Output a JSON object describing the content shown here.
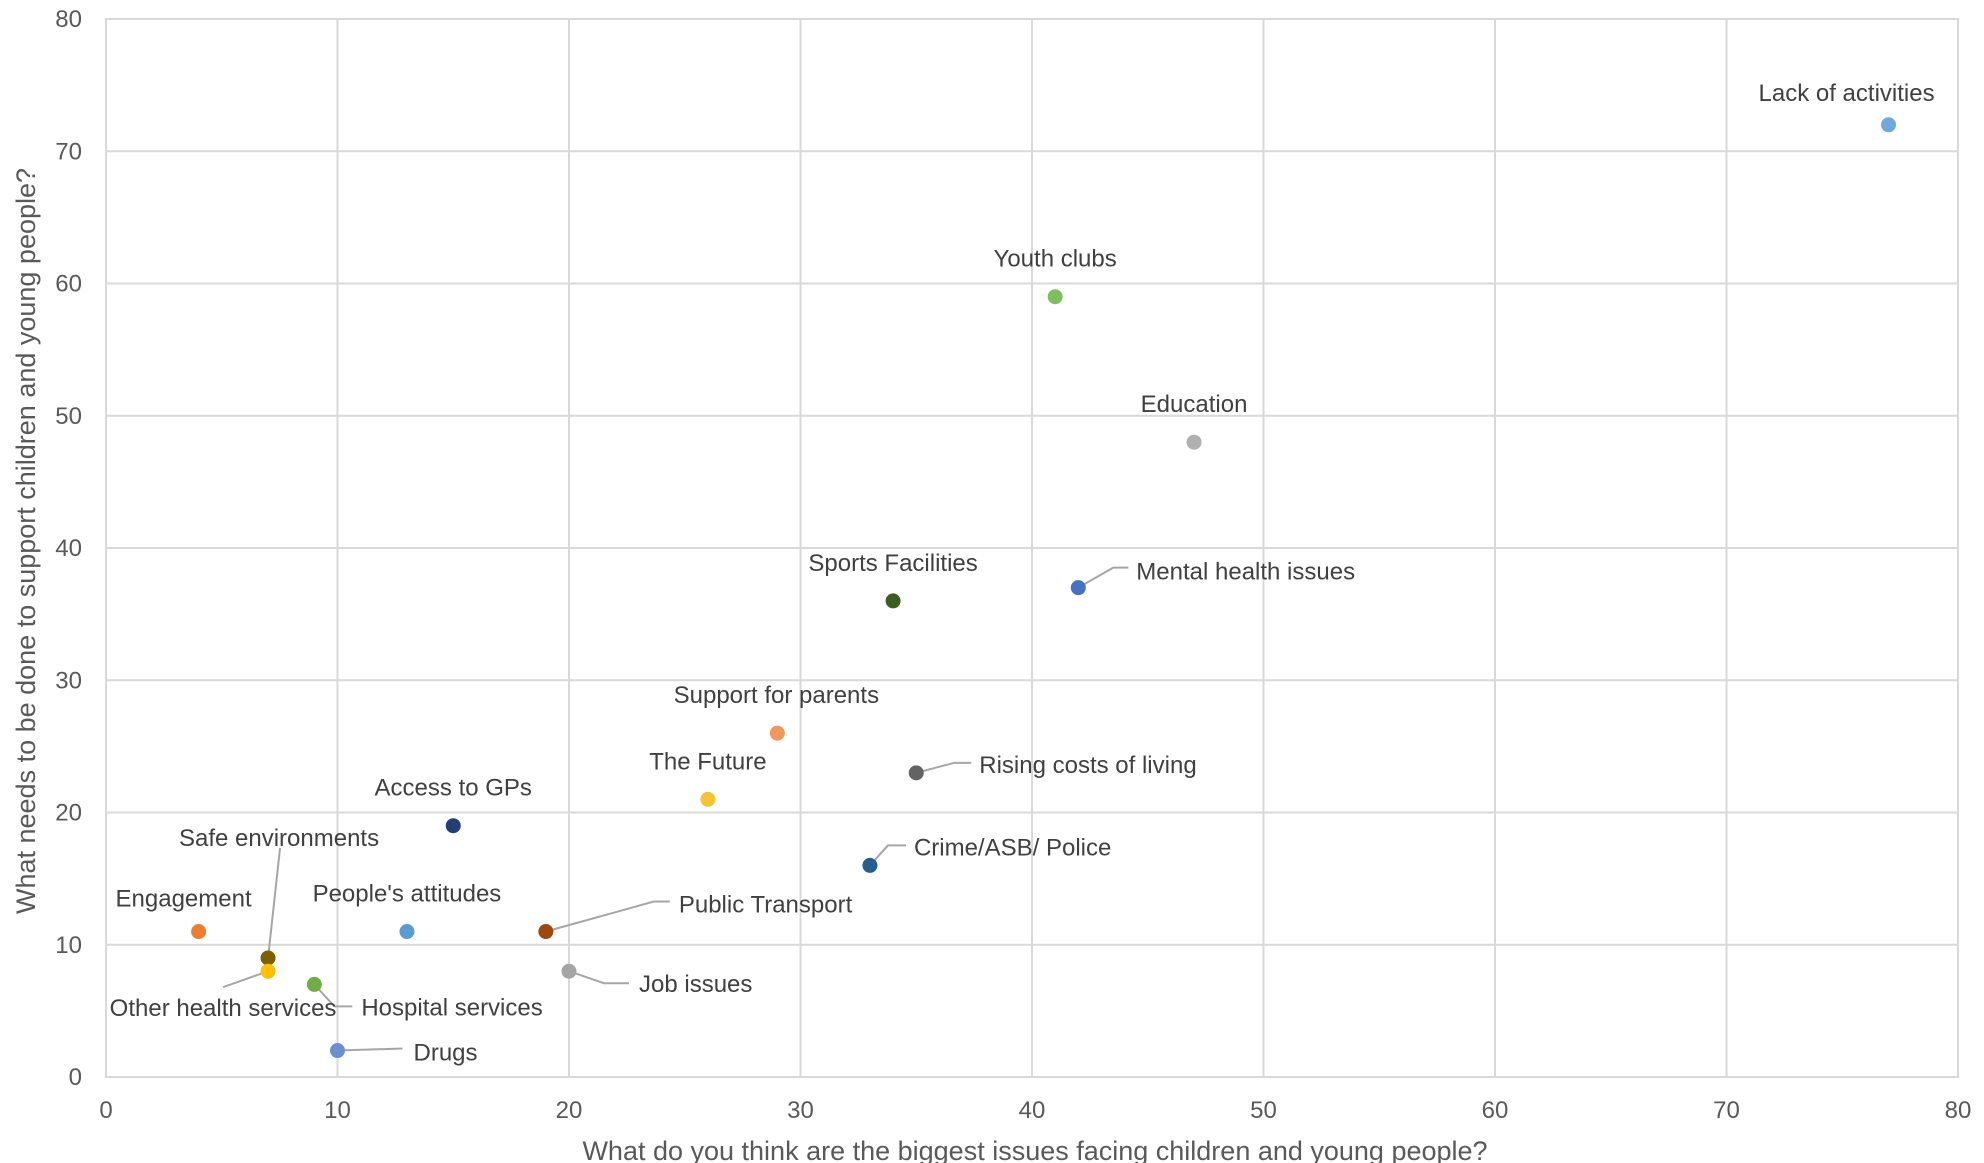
{
  "chart_data": {
    "type": "scatter",
    "title": "",
    "xlabel": "What do you think are the biggest issues facing children and young people?",
    "ylabel": "What needs to be done to support children and young people?",
    "xlim": [
      0,
      80
    ],
    "ylim": [
      0,
      80
    ],
    "x_ticks": [
      0,
      10,
      20,
      30,
      40,
      50,
      60,
      70,
      80
    ],
    "y_ticks": [
      0,
      10,
      20,
      30,
      40,
      50,
      60,
      70,
      80
    ],
    "grid": true,
    "legend": "none",
    "points": [
      {
        "label": "Lack of activities",
        "x": 77,
        "y": 72,
        "color": "#6fa8dc"
      },
      {
        "label": "Youth clubs",
        "x": 41,
        "y": 59,
        "color": "#7fbf5f"
      },
      {
        "label": "Education",
        "x": 47,
        "y": 48,
        "color": "#b0b0b0"
      },
      {
        "label": "Mental health issues",
        "x": 42,
        "y": 37,
        "color": "#4472c4"
      },
      {
        "label": "Sports Facilities",
        "x": 34,
        "y": 36,
        "color": "#3b5f23"
      },
      {
        "label": "Support for parents",
        "x": 29,
        "y": 26,
        "color": "#f0975a"
      },
      {
        "label": "Rising costs of living",
        "x": 35,
        "y": 23,
        "color": "#636363"
      },
      {
        "label": "The Future",
        "x": 26,
        "y": 21,
        "color": "#f5c431"
      },
      {
        "label": "Access to GPs",
        "x": 15,
        "y": 19,
        "color": "#243f77"
      },
      {
        "label": "Crime/ASB/ Police",
        "x": 33,
        "y": 16,
        "color": "#255e91"
      },
      {
        "label": "Engagement",
        "x": 4,
        "y": 11,
        "color": "#ed7d31"
      },
      {
        "label": "People's attitudes",
        "x": 13,
        "y": 11,
        "color": "#5b9bd5"
      },
      {
        "label": "Public Transport",
        "x": 19,
        "y": 11,
        "color": "#9e480e"
      },
      {
        "label": "Safe environments",
        "x": 7,
        "y": 9,
        "color": "#7f6000"
      },
      {
        "label": "Other health services",
        "x": 7,
        "y": 8,
        "color": "#ffc000"
      },
      {
        "label": "Job issues",
        "x": 20,
        "y": 8,
        "color": "#a5a5a5"
      },
      {
        "label": "Hospital services",
        "x": 9,
        "y": 7,
        "color": "#70ad47"
      },
      {
        "label": "Drugs",
        "x": 10,
        "y": 2,
        "color": "#6d8fce"
      }
    ]
  }
}
